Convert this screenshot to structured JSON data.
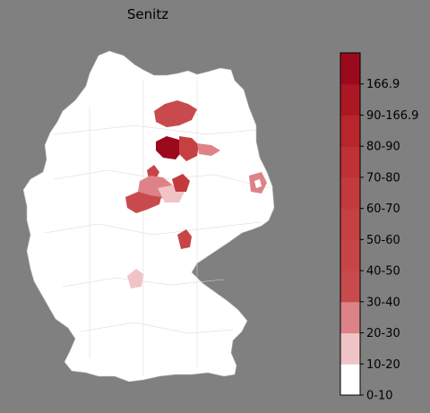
{
  "title": "Senitz",
  "colorbar": {
    "bins": [
      {
        "label": "0-10",
        "color": "#ffffff"
      },
      {
        "label": "10-20",
        "color": "#f0c4c6"
      },
      {
        "label": "20-30",
        "color": "#dd8388"
      },
      {
        "label": "30-40",
        "color": "#c94a4d"
      },
      {
        "label": "40-50",
        "color": "#c84547"
      },
      {
        "label": "50-60",
        "color": "#c64042"
      },
      {
        "label": "60-70",
        "color": "#c33a3d"
      },
      {
        "label": "70-80",
        "color": "#bf3135"
      },
      {
        "label": "80-90",
        "color": "#b8262c"
      },
      {
        "label": "90-166.9",
        "color": "#ab1824"
      },
      {
        "label": "",
        "color": "#9b0a1c"
      }
    ],
    "top_label": "166.9"
  },
  "map": {
    "base_color": "#ffffff",
    "border_color": "#c8c8c8"
  }
}
